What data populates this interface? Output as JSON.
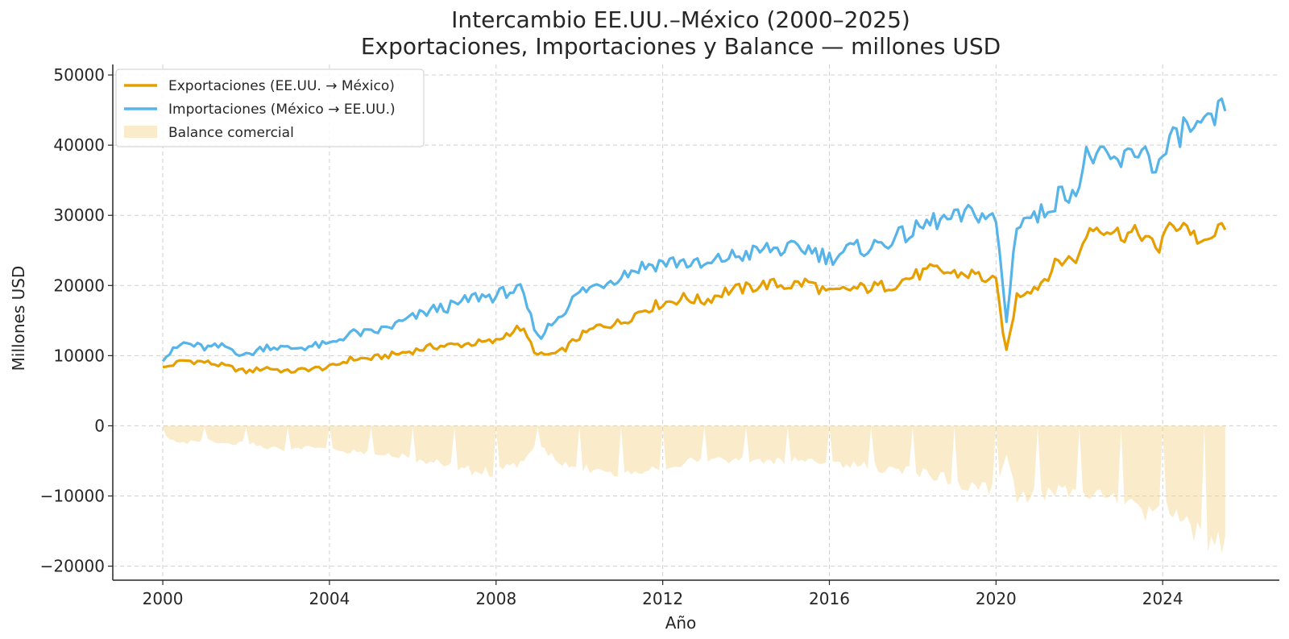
{
  "chart_data": {
    "type": "line",
    "title_line1": "Intercambio EE.UU.–México (2000–2025)",
    "title_line2": "Exportaciones, Importaciones y Balance — millones USD",
    "xlabel": "Año",
    "ylabel": "Millones USD",
    "xlim": [
      1998.8,
      2026.8
    ],
    "ylim": [
      -22000,
      51500
    ],
    "x_ticks": [
      2000,
      2004,
      2008,
      2012,
      2016,
      2020,
      2024
    ],
    "y_ticks": [
      -20000,
      -10000,
      0,
      10000,
      20000,
      30000,
      40000,
      50000
    ],
    "y_tick_labels": [
      "−20000",
      "−10000",
      "0",
      "10000",
      "20000",
      "30000",
      "40000",
      "50000"
    ],
    "grid": true,
    "legend_position": "top-left",
    "x_anchors": [
      2000,
      2000.5,
      2001,
      2001.5,
      2002,
      2002.5,
      2003,
      2003.5,
      2004,
      2004.5,
      2005,
      2005.5,
      2006,
      2006.5,
      2007,
      2007.5,
      2008,
      2008.3,
      2008.6,
      2009,
      2009.5,
      2010,
      2010.5,
      2011,
      2011.5,
      2012,
      2012.5,
      2013,
      2013.5,
      2014,
      2014.5,
      2015,
      2015.5,
      2016,
      2016.5,
      2017,
      2017.5,
      2018,
      2018.5,
      2019,
      2019.5,
      2020,
      2020.25,
      2020.5,
      2020.75,
      2021,
      2021.5,
      2022,
      2022.2,
      2022.5,
      2023,
      2023.5,
      2023.9,
      2024,
      2024.5,
      2025,
      2025.5
    ],
    "series": [
      {
        "name": "Exportaciones (EE.UU. → México)",
        "color": "#E69F00",
        "values": [
          8200,
          9300,
          9100,
          8500,
          7700,
          8300,
          7700,
          8100,
          8300,
          9500,
          9600,
          10100,
          10700,
          11300,
          11500,
          11800,
          12000,
          13300,
          14000,
          10000,
          10300,
          12700,
          14300,
          14700,
          16500,
          17500,
          18200,
          17800,
          19200,
          19600,
          20200,
          20000,
          20500,
          18800,
          19500,
          19700,
          20100,
          21300,
          22200,
          21700,
          21600,
          20300,
          10400,
          18500,
          19500,
          19900,
          23400,
          24100,
          28000,
          28500,
          27300,
          27400,
          24700,
          27500,
          29000,
          25500,
          29000
        ]
      },
      {
        "name": "Importaciones (México → EE.UU.)",
        "color": "#56B4E9",
        "values": [
          9600,
          11800,
          11100,
          11300,
          10000,
          11400,
          11000,
          11300,
          11600,
          13200,
          13200,
          14200,
          15400,
          16600,
          17100,
          18400,
          18500,
          19300,
          19200,
          12500,
          15600,
          19000,
          20200,
          21500,
          22700,
          23300,
          23400,
          22600,
          24000,
          24400,
          25200,
          25100,
          25300,
          23900,
          25200,
          25400,
          26600,
          27600,
          29200,
          29400,
          30500,
          29200,
          14900,
          29000,
          29800,
          29700,
          32700,
          34300,
          39000,
          38000,
          37500,
          39800,
          36400,
          38500,
          42500,
          42000,
          45500
        ]
      },
      {
        "name": "Balance comercial",
        "color": "#F5D48C",
        "values": [
          -1400,
          -2500,
          -2000,
          -2800,
          -2300,
          -3100,
          -3300,
          -3200,
          -3300,
          -3700,
          -3600,
          -4100,
          -4700,
          -5300,
          -5600,
          -6600,
          -6500,
          -6000,
          -5200,
          -2500,
          -5300,
          -6300,
          -5900,
          -6800,
          -6200,
          -5800,
          -5200,
          -4800,
          -4800,
          -4800,
          -5000,
          -5100,
          -4800,
          -5100,
          -5700,
          -5700,
          -6500,
          -6300,
          -7000,
          -7700,
          -8900,
          -8900,
          -4500,
          -10500,
          -10300,
          -9800,
          -9300,
          -10200,
          -11000,
          -9500,
          -10200,
          -12400,
          -11700,
          -11000,
          -13500,
          -16500,
          -16500
        ]
      }
    ]
  }
}
